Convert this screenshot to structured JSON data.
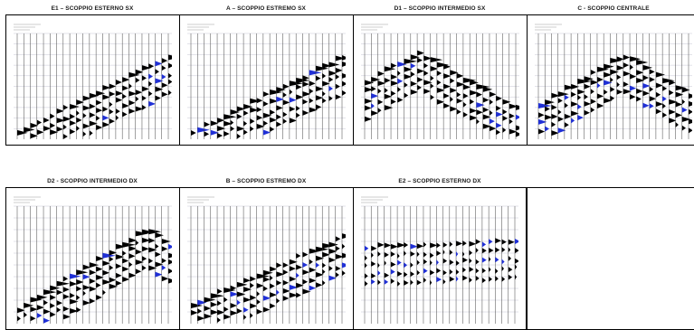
{
  "panels_row1": [
    {
      "title": "E1 – SCOPPIO ESTERNO SX",
      "shape": "right-dip-left"
    },
    {
      "title": "A – SCOPPIO ESTREMO SX",
      "shape": "right-dip-left"
    },
    {
      "title": "D1 – SCOPPIO INTERMEDIO SX",
      "shape": "apex-left"
    },
    {
      "title": "C - SCOPPIO CENTRALE",
      "shape": "apex-center"
    }
  ],
  "panels_row2": [
    {
      "title": "D2 - SCOPPIO INTERMEDIO DX",
      "shape": "apex-right"
    },
    {
      "title": "B – SCOPPIO ESTREMO DX",
      "shape": "right-edge"
    },
    {
      "title": "E2 – SCOPPIO ESTERNO DX",
      "shape": "flat"
    },
    {
      "title": "",
      "shape": "empty"
    }
  ],
  "colors": {
    "trace": "#000000",
    "accent": "#1f2fd6",
    "grid": "#b8b8c8"
  }
}
